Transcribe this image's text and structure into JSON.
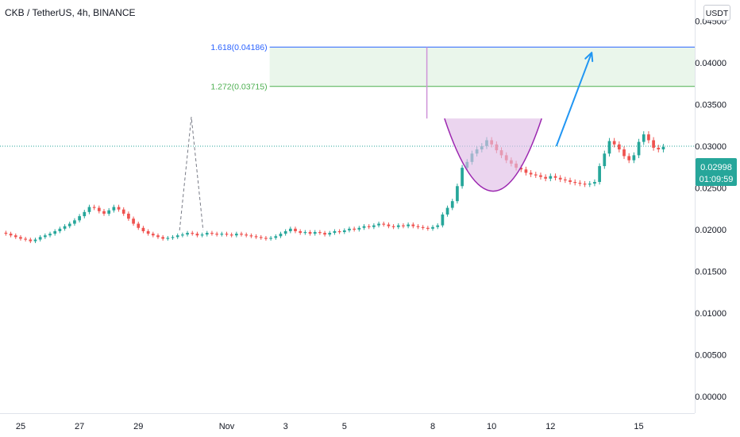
{
  "header": {
    "title": "CKB / TetherUS, 4h, BINANCE",
    "currency": "USDT"
  },
  "price_label": {
    "price": "0.02998",
    "countdown": "01:09:59"
  },
  "fib_levels": [
    {
      "label": "1.618(0.04186)",
      "value": 0.04186,
      "color": "#2962ff"
    },
    {
      "label": "1.272(0.03715)",
      "value": 0.03715,
      "color": "#4caf50"
    }
  ],
  "colors": {
    "up": "#26a69a",
    "down": "#ef5350",
    "cup_fill": "#e1bee7",
    "cup_line": "#9c27b0",
    "target_zone": "#e8f5e9",
    "arrow": "#2196f3",
    "current_price": "#26a69a"
  },
  "chart_data": {
    "type": "candlestick",
    "title": "CKB / TetherUS, 4h, BINANCE",
    "y_axis": {
      "ticks": [
        "0.04500",
        "0.04000",
        "0.03500",
        "0.03000",
        "0.02500",
        "0.02000",
        "0.01500",
        "0.01000",
        "0.00500",
        "0.00000"
      ],
      "tick_values": [
        0.045,
        0.04,
        0.035,
        0.03,
        0.025,
        0.02,
        0.015,
        0.01,
        0.005,
        0.0
      ],
      "range": [
        -0.002,
        0.0475
      ]
    },
    "x_axis": {
      "ticks": [
        "25",
        "27",
        "29",
        "Nov",
        "3",
        "5",
        "8",
        "10",
        "12",
        "15"
      ],
      "tick_days": [
        -7,
        -5,
        -3,
        0,
        2,
        4,
        7,
        9,
        11,
        14
      ],
      "range_days": [
        -7.7,
        15.9
      ],
      "note": "day offsets relative to Nov 1"
    },
    "candles_per_day": 6,
    "series_close": [
      0.0195,
      0.0193,
      0.0191,
      0.0189,
      0.0188,
      0.0186,
      0.0188,
      0.0191,
      0.0193,
      0.0195,
      0.0198,
      0.0201,
      0.0204,
      0.0207,
      0.0211,
      0.0216,
      0.0221,
      0.0227,
      0.0226,
      0.0222,
      0.0219,
      0.0223,
      0.0227,
      0.0224,
      0.0219,
      0.0213,
      0.0207,
      0.0202,
      0.0198,
      0.0195,
      0.0193,
      0.0191,
      0.0189,
      0.019,
      0.0191,
      0.0193,
      0.0194,
      0.0196,
      0.0195,
      0.0193,
      0.0194,
      0.0196,
      0.0195,
      0.0194,
      0.0195,
      0.0194,
      0.0193,
      0.0195,
      0.0194,
      0.0193,
      0.0192,
      0.0191,
      0.019,
      0.0189,
      0.019,
      0.0192,
      0.0195,
      0.0198,
      0.0201,
      0.0198,
      0.0196,
      0.0197,
      0.0195,
      0.0197,
      0.0196,
      0.0194,
      0.0196,
      0.0198,
      0.0197,
      0.0199,
      0.0201,
      0.02,
      0.0202,
      0.0204,
      0.0203,
      0.0205,
      0.0207,
      0.0206,
      0.0204,
      0.0203,
      0.0205,
      0.0204,
      0.0206,
      0.0204,
      0.0203,
      0.0202,
      0.0201,
      0.0203,
      0.0205,
      0.0218,
      0.0226,
      0.0234,
      0.0252,
      0.0274,
      0.0281,
      0.0291,
      0.0296,
      0.03,
      0.0307,
      0.0302,
      0.0295,
      0.0289,
      0.0283,
      0.0279,
      0.0274,
      0.0272,
      0.0268,
      0.0266,
      0.0265,
      0.0263,
      0.0261,
      0.0264,
      0.0262,
      0.026,
      0.0259,
      0.0257,
      0.0256,
      0.0255,
      0.0254,
      0.0255,
      0.0257,
      0.0276,
      0.0291,
      0.0306,
      0.0302,
      0.0296,
      0.0288,
      0.0283,
      0.0289,
      0.0305,
      0.0314,
      0.0307,
      0.0298,
      0.0296,
      0.0299
    ],
    "series_labels": [],
    "annotations": {
      "current_price": 0.02998,
      "spike_high": 0.0335,
      "cup_pattern": {
        "rim": 0.0333,
        "bottom": 0.0246,
        "start_day": 7.4,
        "end_day": 10.7
      },
      "target_arrow": {
        "from_day": 11.2,
        "from_price": 0.03,
        "to_day": 12.4,
        "to_price": 0.0412
      },
      "fib_start_day": 6.8
    }
  }
}
